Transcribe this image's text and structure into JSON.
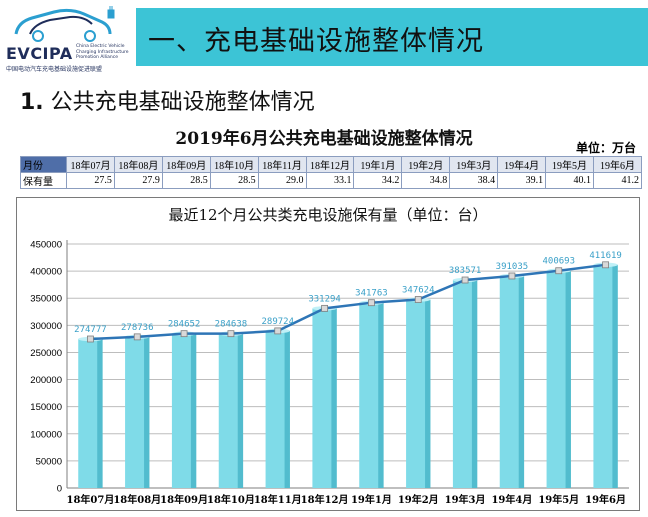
{
  "logo": {
    "name": "EVCIPA",
    "english": "China Electric Vehicle Charging Infrastructure Promotion Alliance",
    "chinese": "中国电动汽车充电基础设施促进联盟"
  },
  "banner": {
    "title": "一、充电基础设施整体情况"
  },
  "section": {
    "number": "1.",
    "title": "公共充电基础设施整体情况"
  },
  "table": {
    "title": "2019年6月公共充电基础设施整体情况",
    "unit": "单位：万台",
    "header_label": "月份",
    "value_label": "保有量",
    "months": [
      "18年07月",
      "18年08月",
      "18年09月",
      "18年10月",
      "18年11月",
      "18年12月",
      "19年1月",
      "19年2月",
      "19年3月",
      "19年4月",
      "19年5月",
      "19年6月"
    ],
    "values": [
      "27.5",
      "27.9",
      "28.5",
      "28.5",
      "29.0",
      "33.1",
      "34.2",
      "34.8",
      "38.4",
      "39.1",
      "40.1",
      "41.2"
    ]
  },
  "colors": {
    "banner": "#3cc4d6",
    "bar_top": "#7fdbe8",
    "bar_side": "#2ea3b8",
    "line": "#2e75b6",
    "label": "#3aa0c8"
  },
  "chart_data": {
    "type": "bar",
    "title": "最近12个月公共类充电设施保有量（单位：台）",
    "categories": [
      "18年07月",
      "18年08月",
      "18年09月",
      "18年10月",
      "18年11月",
      "18年12月",
      "19年1月",
      "19年2月",
      "19年3月",
      "19年4月",
      "19年5月",
      "19年6月"
    ],
    "series": [
      {
        "name": "保有量（柱）",
        "kind": "bar",
        "values": [
          274777,
          278736,
          284652,
          284638,
          289724,
          331294,
          341763,
          347624,
          383571,
          391035,
          400693,
          411619
        ]
      },
      {
        "name": "保有量（线）",
        "kind": "line",
        "values": [
          274777,
          278736,
          284652,
          284638,
          289724,
          331294,
          341763,
          347624,
          383571,
          391035,
          400693,
          411619
        ]
      }
    ],
    "data_labels": [
      "274777",
      "278736",
      "284652",
      "284638",
      "289724",
      "331294",
      "341763",
      "347624",
      "383571",
      "391035",
      "400693",
      "411619"
    ],
    "ylim": [
      0,
      450000
    ],
    "yticks": [
      "0",
      "50000",
      "100000",
      "150000",
      "200000",
      "250000",
      "300000",
      "350000",
      "400000",
      "450000"
    ],
    "grid": true,
    "xlabel": "",
    "ylabel": ""
  }
}
